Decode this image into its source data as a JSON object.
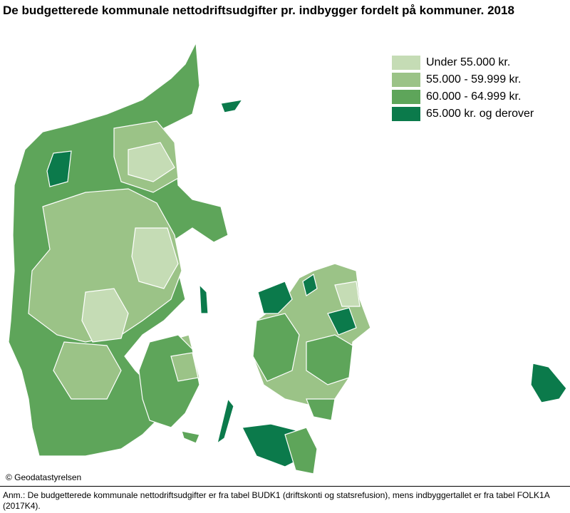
{
  "title": "De budgetterede kommunale nettodriftsudgifter pr. indbygger fordelt på kommuner. 2018",
  "legend": {
    "items": [
      {
        "label": "Under 55.000 kr.",
        "color": "#c5dcb5"
      },
      {
        "label": "55.000 - 59.999 kr.",
        "color": "#9bc387"
      },
      {
        "label": "60.000 - 64.999 kr.",
        "color": "#5ea55a"
      },
      {
        "label": "65.000 kr. og derover",
        "color": "#0b7a4b"
      }
    ]
  },
  "credit": "© Geodatastyrelsen",
  "note": "Anm.: De budgetterede kommunale nettodriftsudgifter er fra tabel BUDK1 (driftskonti og statsrefusion), mens indbyggertallet er fra tabel FOLK1A (2017K4)."
}
